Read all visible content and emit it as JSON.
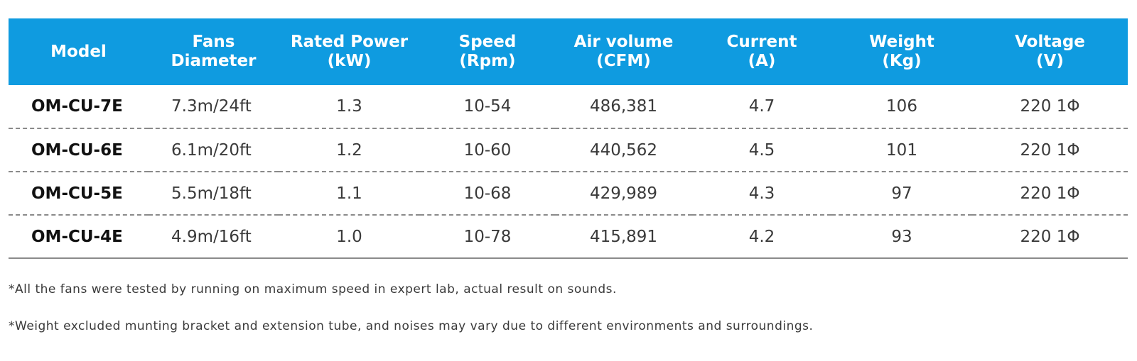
{
  "table": {
    "headers": [
      {
        "key": "model",
        "lines": [
          "Model"
        ]
      },
      {
        "key": "fans_diameter",
        "lines": [
          "Fans",
          "Diameter"
        ]
      },
      {
        "key": "rated_power",
        "lines": [
          "Rated Power",
          "(kW)"
        ]
      },
      {
        "key": "speed",
        "lines": [
          "Speed",
          "(Rpm)"
        ]
      },
      {
        "key": "air_volume",
        "lines": [
          "Air volume",
          "(CFM)"
        ]
      },
      {
        "key": "current",
        "lines": [
          "Current",
          "(A)"
        ]
      },
      {
        "key": "weight",
        "lines": [
          "Weight",
          "(Kg)"
        ]
      },
      {
        "key": "voltage",
        "lines": [
          "Voltage",
          "(V)"
        ]
      }
    ],
    "rows": [
      [
        "OM-CU-7E",
        "7.3m/24ft",
        "1.3",
        "10-54",
        "486,381",
        "4.7",
        "106",
        "220 1Φ"
      ],
      [
        "OM-CU-6E",
        "6.1m/20ft",
        "1.2",
        "10-60",
        "440,562",
        "4.5",
        "101",
        "220 1Φ"
      ],
      [
        "OM-CU-5E",
        "5.5m/18ft",
        "1.1",
        "10-68",
        "429,989",
        "4.3",
        "97",
        "220 1Φ"
      ],
      [
        "OM-CU-4E",
        "4.9m/16ft",
        "1.0",
        "10-78",
        "415,891",
        "4.2",
        "93",
        "220 1Φ"
      ]
    ]
  },
  "notes": [
    "*All the fans were tested by running on maximum speed in expert lab, actual result on sounds.",
    "*Weight excluded munting bracket and extension tube, and noises may vary due to different environments and surroundings."
  ],
  "colors": {
    "header_bg": "#0f9be0",
    "header_text": "#ffffff",
    "body_text": "#3a3a3a",
    "separator": "#8a8a8a"
  }
}
